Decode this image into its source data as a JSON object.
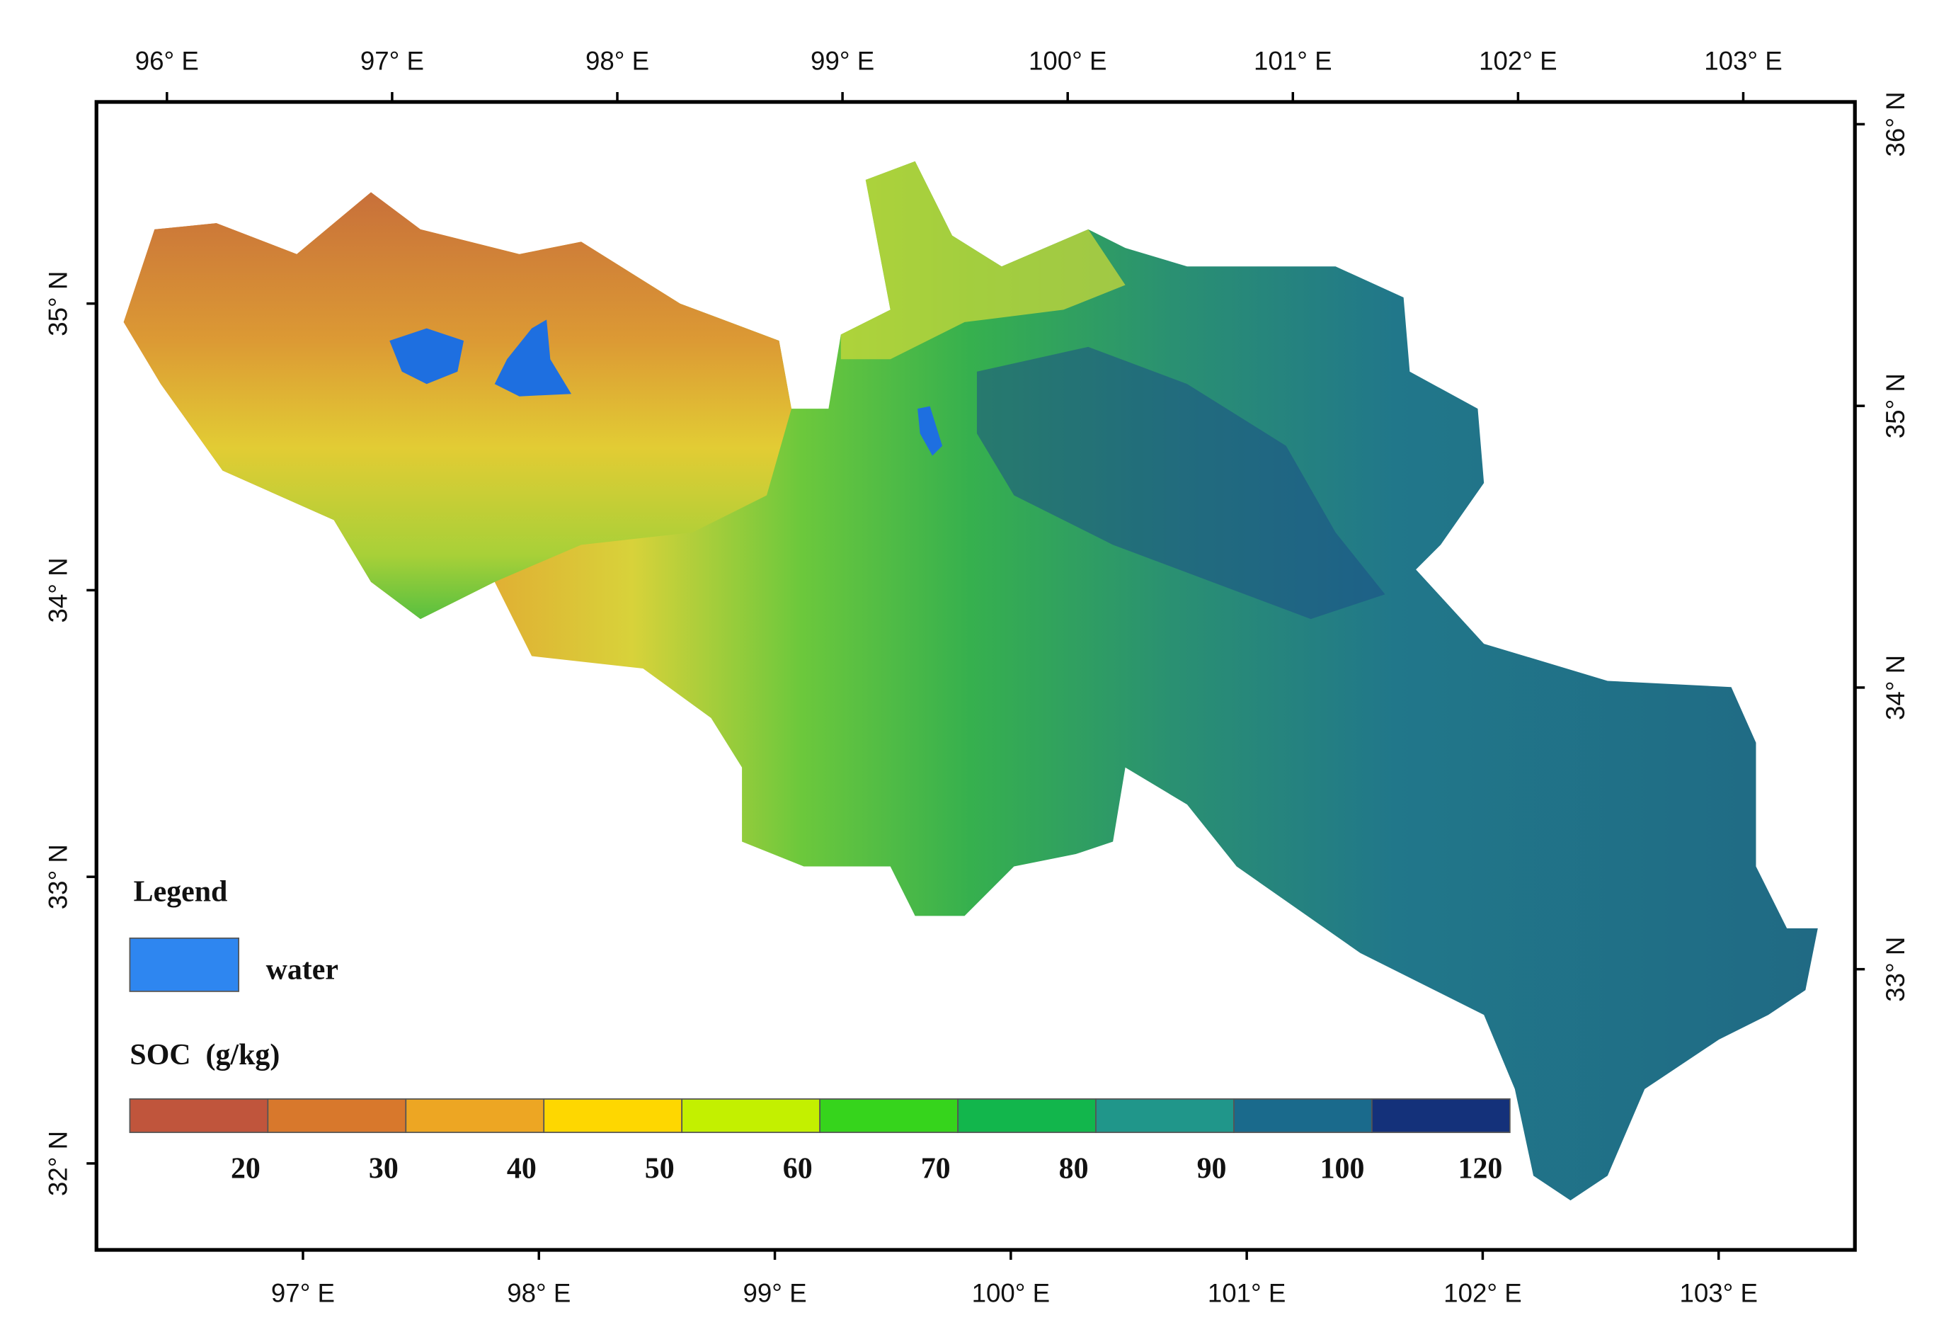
{
  "map": {
    "top_labels": [
      "96° E",
      "97° E",
      "98° E",
      "99° E",
      "100° E",
      "101° E",
      "102° E",
      "103° E"
    ],
    "bottom_labels": [
      "97° E",
      "98° E",
      "99° E",
      "100° E",
      "101° E",
      "102° E",
      "103° E"
    ],
    "left_labels": [
      "35° N",
      "34° N",
      "33° N",
      "32° N"
    ],
    "right_labels": [
      "36° N",
      "35° N",
      "34° N",
      "33° N"
    ],
    "legend": {
      "title": "Legend",
      "water": {
        "label": "water",
        "color": "#2e86f0"
      },
      "soc_title": "SOC  (g/kg)",
      "classes": [
        {
          "label": "20",
          "color": "#c0553c"
        },
        {
          "label": "30",
          "color": "#d8782c"
        },
        {
          "label": "40",
          "color": "#eda623"
        },
        {
          "label": "50",
          "color": "#fed700"
        },
        {
          "label": "60",
          "color": "#c3f000"
        },
        {
          "label": "70",
          "color": "#36d41c"
        },
        {
          "label": "80",
          "color": "#12b64c"
        },
        {
          "label": "90",
          "color": "#20968a"
        },
        {
          "label": "100",
          "color": "#1a6a8c"
        },
        {
          "label": "120",
          "color": "#14317a"
        }
      ]
    }
  }
}
